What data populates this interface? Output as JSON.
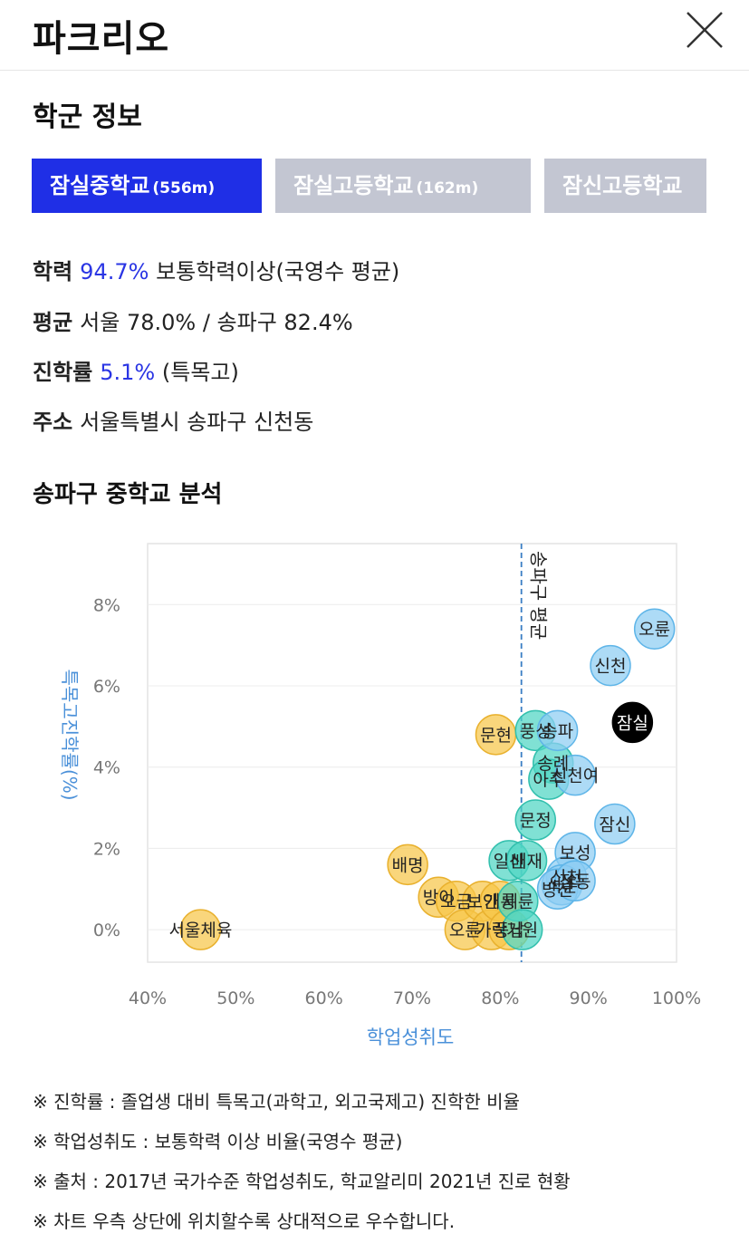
{
  "header": {
    "title": "파크리오"
  },
  "section_title": "학군 정보",
  "tabs": [
    {
      "name": "잠실중학교",
      "distance": "(556m)"
    },
    {
      "name": "잠실고등학교",
      "distance": "(162m)"
    },
    {
      "name": "잠신고등학교",
      "distance": ""
    }
  ],
  "info": {
    "academic": {
      "label": "학력",
      "value": "94.7%",
      "desc": "보통학력이상(국영수 평균)"
    },
    "average": {
      "label": "평균",
      "text": "서울 78.0% / 송파구 82.4%"
    },
    "advancement": {
      "label": "진학률",
      "value": "5.1%",
      "desc": "(특목고)"
    },
    "address": {
      "label": "주소",
      "text": "서울특별시 송파구 신천동"
    }
  },
  "chart_title": "송파구 중학교 분석",
  "chart_data": {
    "type": "scatter",
    "xlabel": "학업성취도",
    "ylabel": "특목고진학률(%)",
    "xlim": [
      40,
      100
    ],
    "ylim": [
      -0.8,
      9.5
    ],
    "x_ticks": [
      "40%",
      "50%",
      "60%",
      "70%",
      "80%",
      "90%",
      "100%"
    ],
    "y_ticks": [
      "0%",
      "2%",
      "4%",
      "6%",
      "8%"
    ],
    "reference_line": {
      "x": 82.4,
      "label": "송파구 평균"
    },
    "colors": {
      "orange": "#f7c64a",
      "teal": "#4fd6c4",
      "blue": "#8ecdf2",
      "highlight": "#000000",
      "line": "#3a7ec4",
      "axis_title": "#4a90d9"
    },
    "points": [
      {
        "label": "서울체육",
        "x": 46,
        "y": 0.0,
        "color": "orange"
      },
      {
        "label": "배명",
        "x": 69.5,
        "y": 1.6,
        "color": "orange"
      },
      {
        "label": "방이",
        "x": 73,
        "y": 0.8,
        "color": "orange"
      },
      {
        "label": "오금",
        "x": 75,
        "y": 0.7,
        "color": "orange"
      },
      {
        "label": "오륜",
        "x": 76,
        "y": 0.0,
        "color": "orange"
      },
      {
        "label": "보인",
        "x": 78,
        "y": 0.7,
        "color": "orange"
      },
      {
        "label": "가락",
        "x": 79,
        "y": 0.0,
        "color": "orange"
      },
      {
        "label": "문현",
        "x": 79.5,
        "y": 4.8,
        "color": "orange"
      },
      {
        "label": "개롱",
        "x": 80,
        "y": 0.7,
        "color": "orange"
      },
      {
        "label": "풍납",
        "x": 81,
        "y": 0.0,
        "color": "orange"
      },
      {
        "label": "일신",
        "x": 81,
        "y": 1.7,
        "color": "teal"
      },
      {
        "label": "세륜",
        "x": 82,
        "y": 0.7,
        "color": "teal"
      },
      {
        "label": "거원",
        "x": 82.5,
        "y": 0.0,
        "color": "teal"
      },
      {
        "label": "배재",
        "x": 83,
        "y": 1.7,
        "color": "teal"
      },
      {
        "label": "문정",
        "x": 84,
        "y": 2.7,
        "color": "teal"
      },
      {
        "label": "풍성",
        "x": 84,
        "y": 4.9,
        "color": "teal"
      },
      {
        "label": "송례",
        "x": 86,
        "y": 4.1,
        "color": "teal"
      },
      {
        "label": "아주",
        "x": 85.5,
        "y": 3.7,
        "color": "teal"
      },
      {
        "label": "송파",
        "x": 86.5,
        "y": 4.9,
        "color": "blue"
      },
      {
        "label": "신천",
        "x": 92.5,
        "y": 6.5,
        "color": "blue"
      },
      {
        "label": "오륜",
        "x": 97.5,
        "y": 7.4,
        "color": "blue"
      },
      {
        "label": "잠실",
        "x": 95,
        "y": 5.1,
        "color": "highlight"
      },
      {
        "label": "잠신",
        "x": 93,
        "y": 2.6,
        "color": "blue"
      },
      {
        "label": "보성",
        "x": 88.5,
        "y": 1.9,
        "color": "blue"
      },
      {
        "label": "신천",
        "x": 87.5,
        "y": 1.3,
        "color": "blue"
      },
      {
        "label": "석촌",
        "x": 87,
        "y": 1.1,
        "color": "blue"
      },
      {
        "label": "방산",
        "x": 86.5,
        "y": 1.0,
        "color": "blue"
      },
      {
        "label": "잠동",
        "x": 88.5,
        "y": 1.2,
        "color": "blue"
      },
      {
        "label": "신천여",
        "x": 88.5,
        "y": 3.8,
        "color": "blue"
      }
    ]
  },
  "notes": [
    "※ 진학률 : 졸업생 대비 특목고(과학고, 외고국제고) 진학한 비율",
    "※ 학업성취도 : 보통학력 이상 비율(국영수 평균)",
    "※ 출처 : 2017년 국가수준 학업성취도, 학교알리미 2021년 진로 현황",
    "※ 차트 우측 상단에 위치할수록 상대적으로 우수합니다."
  ]
}
